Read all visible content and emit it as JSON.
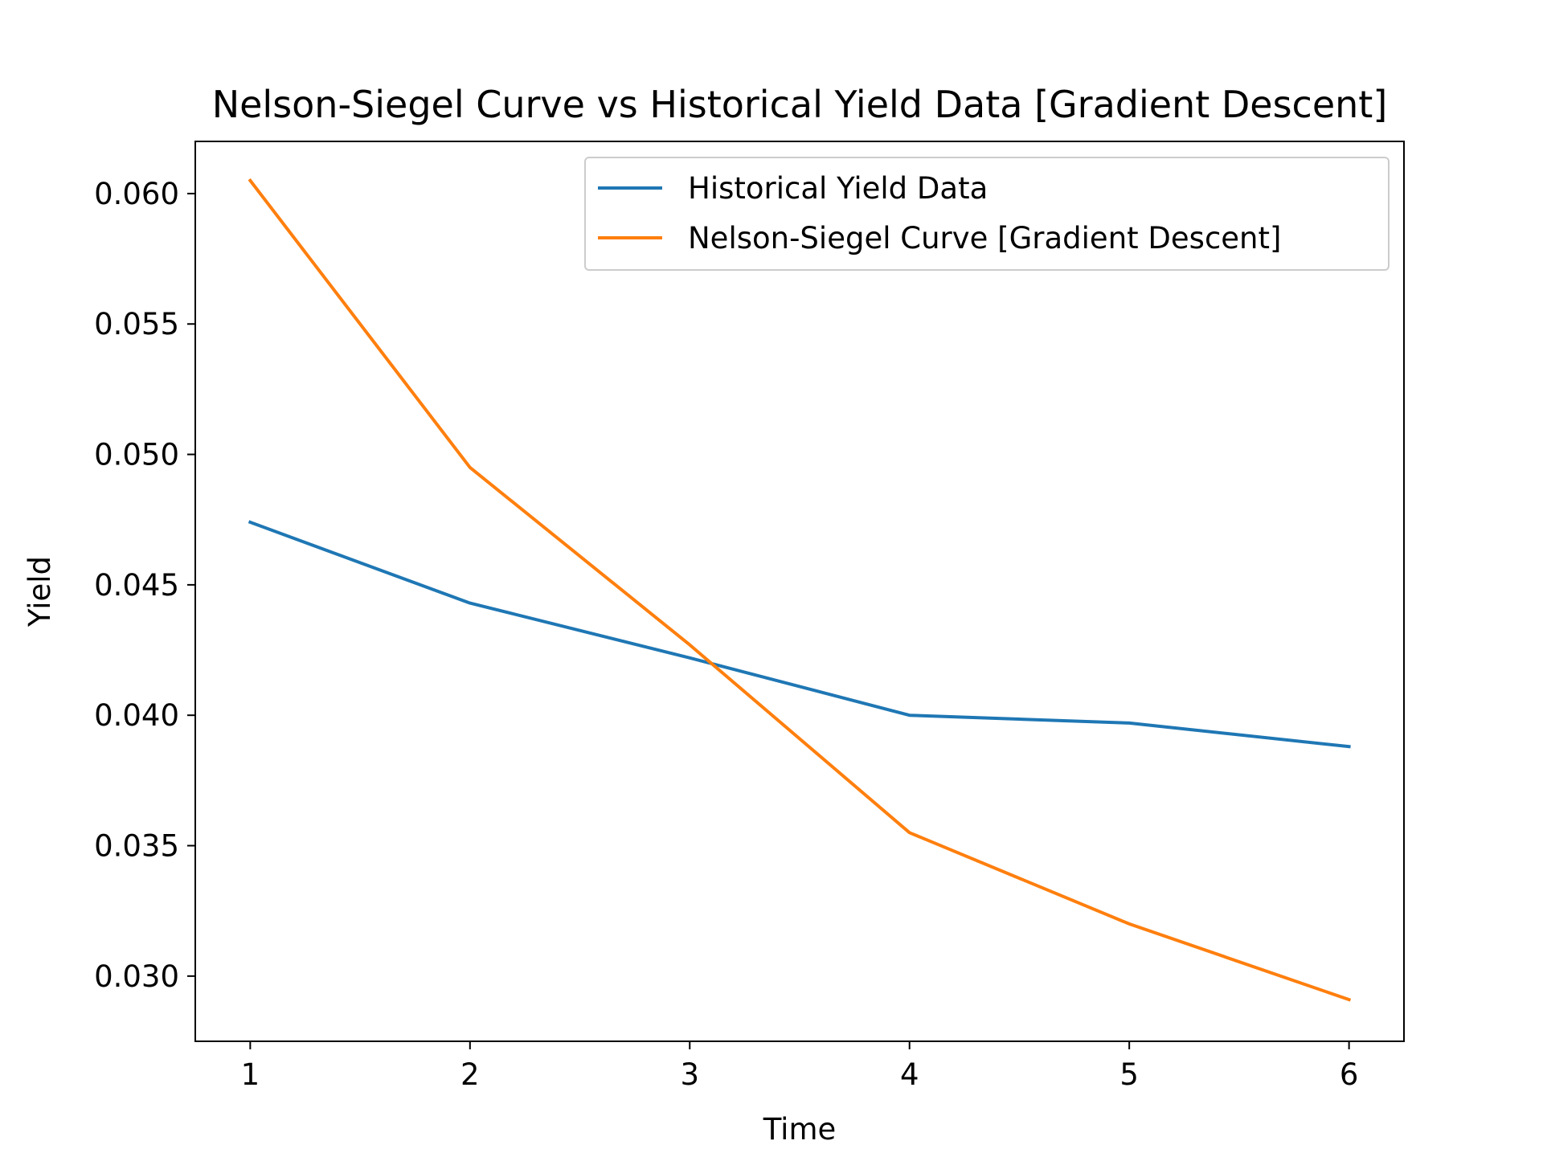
{
  "chart_data": {
    "type": "line",
    "title": "Nelson-Siegel Curve vs Historical Yield Data [Gradient Descent]",
    "xlabel": "Time",
    "ylabel": "Yield",
    "x": [
      1,
      2,
      3,
      4,
      5,
      6
    ],
    "xticks": [
      "1",
      "2",
      "3",
      "4",
      "5",
      "6"
    ],
    "yticks": [
      "0.030",
      "0.035",
      "0.040",
      "0.045",
      "0.050",
      "0.055",
      "0.060"
    ],
    "xlim": [
      0.75,
      6.25
    ],
    "ylim": [
      0.0275,
      0.062
    ],
    "grid": false,
    "legend_position": "top-right",
    "series": [
      {
        "name": "Historical Yield Data",
        "color": "#1f77b4",
        "values": [
          0.0474,
          0.0443,
          0.0422,
          0.04,
          0.0397,
          0.0388
        ]
      },
      {
        "name": "Nelson-Siegel Curve [Gradient Descent]",
        "color": "#ff7f0e",
        "values": [
          0.0605,
          0.0495,
          0.0427,
          0.0355,
          0.032,
          0.0291
        ]
      }
    ]
  }
}
